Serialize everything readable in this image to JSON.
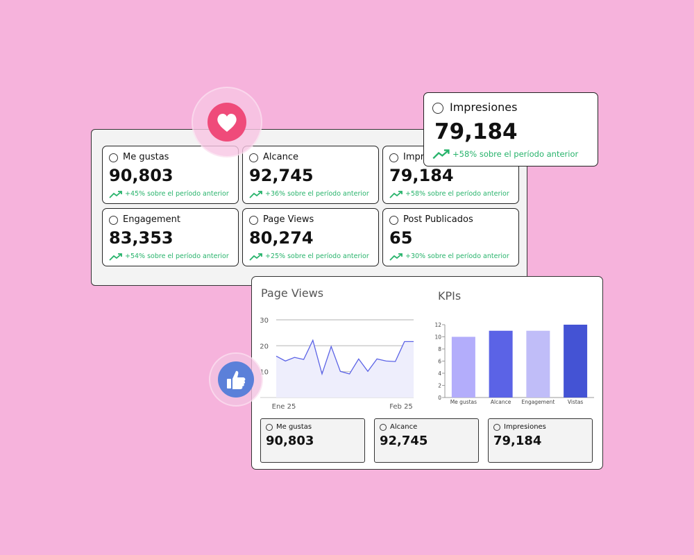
{
  "back_panel": {
    "cards": [
      {
        "label": "Me gustas",
        "value": "90,803",
        "change": "+45% sobre el período anterior"
      },
      {
        "label": "Alcance",
        "value": "92,745",
        "change": "+36% sobre el período anterior"
      },
      {
        "label": "Impresiones",
        "value": "79,184",
        "change": "+58% sobre el período anterior"
      },
      {
        "label": "Engagement",
        "value": "83,353",
        "change": "+54% sobre el período anterior"
      },
      {
        "label": "Page Views",
        "value": "80,274",
        "change": "+25% sobre el período anterior"
      },
      {
        "label": "Post Publicados",
        "value": "65",
        "change": "+30% sobre el período anterior"
      }
    ]
  },
  "floating_card": {
    "label": "Impresiones",
    "value": "79,184",
    "change": "+58% sobre el período anterior"
  },
  "chart_data": [
    {
      "type": "line",
      "title": "Page Views",
      "categories": [
        "Ene 25",
        null,
        null,
        null,
        null,
        null,
        null,
        null,
        null,
        null,
        null,
        null,
        null,
        null,
        null,
        "Feb 25"
      ],
      "values": [
        16,
        14.1,
        15.5,
        14.7,
        22.1,
        9.1,
        19.7,
        10.1,
        9.1,
        14.9,
        10.1,
        14.9,
        14.1,
        13.9,
        21.6,
        21.6
      ],
      "color": "#5b63e6",
      "ylim": [
        0,
        30
      ],
      "yticks": [
        10,
        20,
        30
      ],
      "grid": true
    },
    {
      "type": "bar",
      "title": "KPIs",
      "categories": [
        "Me gustas",
        "Alcance",
        "Engagement",
        "Vistas"
      ],
      "values": [
        10,
        11,
        11,
        12
      ],
      "colors": [
        "#b3adfb",
        "#5b63e6",
        "#c0bdf8",
        "#4453d4"
      ],
      "ylim": [
        0,
        12
      ],
      "yticks": [
        0,
        2,
        4,
        6,
        8,
        10,
        12
      ]
    }
  ],
  "summary_cards": [
    {
      "label": "Me gustas",
      "value": "90,803"
    },
    {
      "label": "Alcance",
      "value": "92,745"
    },
    {
      "label": "Impresiones",
      "value": "79,184"
    }
  ]
}
